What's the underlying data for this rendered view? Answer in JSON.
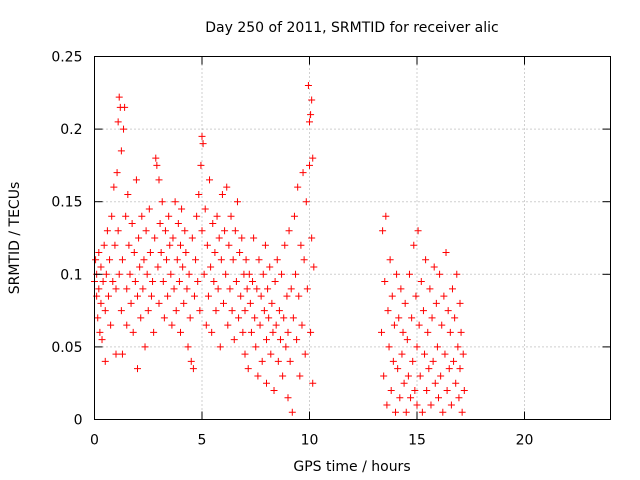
{
  "chart_data": {
    "type": "scatter",
    "title": "Day 250 of 2011, SRMTID for receiver alic",
    "xlabel": "GPS time / hours",
    "ylabel": "SRMTID / TECUs",
    "xlim": [
      0,
      24
    ],
    "ylim": [
      0,
      0.25
    ],
    "xticks": [
      0,
      5,
      10,
      15,
      20
    ],
    "xtick_labels": [
      "0",
      "5",
      "10",
      "15",
      "20"
    ],
    "yticks": [
      0,
      0.05,
      0.1,
      0.15,
      0.2,
      0.25
    ],
    "ytick_labels": [
      "0",
      "0.05",
      "0.1",
      "0.15",
      "0.2",
      "0.25"
    ],
    "grid": true,
    "legend": "none",
    "marker": "plus",
    "color": "#ff0000",
    "series": [
      {
        "points": [
          [
            0.0,
            0.095
          ],
          [
            0.05,
            0.11
          ],
          [
            0.1,
            0.085
          ],
          [
            0.1,
            0.1
          ],
          [
            0.15,
            0.07
          ],
          [
            0.2,
            0.115
          ],
          [
            0.2,
            0.09
          ],
          [
            0.25,
            0.06
          ],
          [
            0.3,
            0.105
          ],
          [
            0.3,
            0.08
          ],
          [
            0.35,
            0.055
          ],
          [
            0.4,
            0.095
          ],
          [
            0.45,
            0.12
          ],
          [
            0.5,
            0.075
          ],
          [
            0.5,
            0.04
          ],
          [
            0.55,
            0.1
          ],
          [
            0.6,
            0.13
          ],
          [
            0.65,
            0.085
          ],
          [
            0.7,
            0.11
          ],
          [
            0.75,
            0.065
          ],
          [
            0.8,
            0.14
          ],
          [
            0.85,
            0.095
          ],
          [
            0.9,
            0.16
          ],
          [
            0.95,
            0.12
          ],
          [
            1.0,
            0.09
          ],
          [
            1.0,
            0.045
          ],
          [
            1.05,
            0.17
          ],
          [
            1.1,
            0.205
          ],
          [
            1.1,
            0.13
          ],
          [
            1.15,
            0.222
          ],
          [
            1.15,
            0.1
          ],
          [
            1.2,
            0.215
          ],
          [
            1.25,
            0.075
          ],
          [
            1.25,
            0.185
          ],
          [
            1.3,
            0.11
          ],
          [
            1.3,
            0.045
          ],
          [
            1.35,
            0.2
          ],
          [
            1.4,
            0.215
          ],
          [
            1.45,
            0.14
          ],
          [
            1.5,
            0.09
          ],
          [
            1.5,
            0.065
          ],
          [
            1.55,
            0.155
          ],
          [
            1.6,
            0.12
          ],
          [
            1.65,
            0.1
          ],
          [
            1.7,
            0.08
          ],
          [
            1.75,
            0.135
          ],
          [
            1.8,
            0.06
          ],
          [
            1.85,
            0.115
          ],
          [
            1.9,
            0.095
          ],
          [
            1.95,
            0.165
          ],
          [
            2.0,
            0.085
          ],
          [
            2.0,
            0.035
          ],
          [
            2.05,
            0.125
          ],
          [
            2.1,
            0.105
          ],
          [
            2.15,
            0.07
          ],
          [
            2.2,
            0.14
          ],
          [
            2.25,
            0.09
          ],
          [
            2.3,
            0.11
          ],
          [
            2.35,
            0.05
          ],
          [
            2.4,
            0.13
          ],
          [
            2.45,
            0.1
          ],
          [
            2.5,
            0.075
          ],
          [
            2.55,
            0.145
          ],
          [
            2.6,
            0.115
          ],
          [
            2.65,
            0.085
          ],
          [
            2.7,
            0.095
          ],
          [
            2.75,
            0.06
          ],
          [
            2.8,
            0.125
          ],
          [
            2.85,
            0.18
          ],
          [
            2.9,
            0.175
          ],
          [
            2.95,
            0.105
          ],
          [
            3.0,
            0.165
          ],
          [
            3.0,
            0.08
          ],
          [
            3.05,
            0.135
          ],
          [
            3.1,
            0.115
          ],
          [
            3.15,
            0.15
          ],
          [
            3.2,
            0.095
          ],
          [
            3.25,
            0.07
          ],
          [
            3.3,
            0.13
          ],
          [
            3.35,
            0.11
          ],
          [
            3.4,
            0.085
          ],
          [
            3.45,
            0.14
          ],
          [
            3.5,
            0.12
          ],
          [
            3.55,
            0.1
          ],
          [
            3.6,
            0.065
          ],
          [
            3.65,
            0.125
          ],
          [
            3.7,
            0.09
          ],
          [
            3.75,
            0.15
          ],
          [
            3.8,
            0.075
          ],
          [
            3.85,
            0.11
          ],
          [
            3.9,
            0.135
          ],
          [
            3.95,
            0.095
          ],
          [
            4.0,
            0.12
          ],
          [
            4.0,
            0.06
          ],
          [
            4.05,
            0.145
          ],
          [
            4.1,
            0.105
          ],
          [
            4.15,
            0.08
          ],
          [
            4.2,
            0.13
          ],
          [
            4.25,
            0.115
          ],
          [
            4.3,
            0.09
          ],
          [
            4.35,
            0.05
          ],
          [
            4.4,
            0.1
          ],
          [
            4.45,
            0.07
          ],
          [
            4.5,
            0.04
          ],
          [
            4.55,
            0.125
          ],
          [
            4.6,
            0.035
          ],
          [
            4.65,
            0.085
          ],
          [
            4.7,
            0.11
          ],
          [
            4.75,
            0.14
          ],
          [
            4.8,
            0.095
          ],
          [
            4.85,
            0.155
          ],
          [
            4.9,
            0.075
          ],
          [
            4.95,
            0.175
          ],
          [
            5.0,
            0.195
          ],
          [
            5.0,
            0.13
          ],
          [
            5.05,
            0.19
          ],
          [
            5.1,
            0.1
          ],
          [
            5.15,
            0.145
          ],
          [
            5.2,
            0.065
          ],
          [
            5.25,
            0.12
          ],
          [
            5.3,
            0.085
          ],
          [
            5.35,
            0.165
          ],
          [
            5.4,
            0.105
          ],
          [
            5.45,
            0.06
          ],
          [
            5.5,
            0.135
          ],
          [
            5.55,
            0.095
          ],
          [
            5.6,
            0.115
          ],
          [
            5.65,
            0.075
          ],
          [
            5.7,
            0.14
          ],
          [
            5.75,
            0.09
          ],
          [
            5.8,
            0.125
          ],
          [
            5.85,
            0.05
          ],
          [
            5.9,
            0.11
          ],
          [
            5.95,
            0.155
          ],
          [
            6.0,
            0.08
          ],
          [
            6.05,
            0.13
          ],
          [
            6.1,
            0.1
          ],
          [
            6.15,
            0.16
          ],
          [
            6.2,
            0.065
          ],
          [
            6.25,
            0.12
          ],
          [
            6.3,
            0.09
          ],
          [
            6.35,
            0.14
          ],
          [
            6.4,
            0.075
          ],
          [
            6.45,
            0.11
          ],
          [
            6.5,
            0.055
          ],
          [
            6.55,
            0.13
          ],
          [
            6.6,
            0.095
          ],
          [
            6.65,
            0.15
          ],
          [
            6.7,
            0.07
          ],
          [
            6.75,
            0.115
          ],
          [
            6.8,
            0.085
          ],
          [
            6.85,
            0.125
          ],
          [
            6.9,
            0.06
          ],
          [
            6.95,
            0.1
          ],
          [
            7.0,
            0.075
          ],
          [
            7.0,
            0.045
          ],
          [
            7.05,
            0.11
          ],
          [
            7.1,
            0.09
          ],
          [
            7.15,
            0.035
          ],
          [
            7.2,
            0.1
          ],
          [
            7.25,
            0.08
          ],
          [
            7.3,
            0.06
          ],
          [
            7.35,
            0.095
          ],
          [
            7.4,
            0.125
          ],
          [
            7.45,
            0.07
          ],
          [
            7.5,
            0.05
          ],
          [
            7.55,
            0.09
          ],
          [
            7.6,
            0.03
          ],
          [
            7.65,
            0.11
          ],
          [
            7.7,
            0.065
          ],
          [
            7.75,
            0.085
          ],
          [
            7.8,
            0.04
          ],
          [
            7.85,
            0.1
          ],
          [
            7.9,
            0.075
          ],
          [
            7.95,
            0.12
          ],
          [
            8.0,
            0.055
          ],
          [
            8.0,
            0.025
          ],
          [
            8.05,
            0.09
          ],
          [
            8.1,
            0.07
          ],
          [
            8.15,
            0.105
          ],
          [
            8.2,
            0.045
          ],
          [
            8.25,
            0.08
          ],
          [
            8.3,
            0.06
          ],
          [
            8.35,
            0.02
          ],
          [
            8.4,
            0.095
          ],
          [
            8.45,
            0.065
          ],
          [
            8.5,
            0.11
          ],
          [
            8.55,
            0.04
          ],
          [
            8.6,
            0.075
          ],
          [
            8.65,
            0.055
          ],
          [
            8.7,
            0.1
          ],
          [
            8.75,
            0.03
          ],
          [
            8.8,
            0.07
          ],
          [
            8.85,
            0.12
          ],
          [
            8.9,
            0.05
          ],
          [
            8.95,
            0.085
          ],
          [
            9.0,
            0.015
          ],
          [
            9.0,
            0.06
          ],
          [
            9.05,
            0.13
          ],
          [
            9.1,
            0.04
          ],
          [
            9.15,
            0.09
          ],
          [
            9.2,
            0.005
          ],
          [
            9.25,
            0.07
          ],
          [
            9.3,
            0.14
          ],
          [
            9.35,
            0.1
          ],
          [
            9.4,
            0.055
          ],
          [
            9.45,
            0.16
          ],
          [
            9.5,
            0.085
          ],
          [
            9.55,
            0.03
          ],
          [
            9.6,
            0.12
          ],
          [
            9.65,
            0.065
          ],
          [
            9.7,
            0.17
          ],
          [
            9.75,
            0.11
          ],
          [
            9.8,
            0.045
          ],
          [
            9.85,
            0.15
          ],
          [
            9.9,
            0.09
          ],
          [
            9.95,
            0.23
          ],
          [
            10.0,
            0.205
          ],
          [
            10.0,
            0.175
          ],
          [
            10.05,
            0.21
          ],
          [
            10.05,
            0.06
          ],
          [
            10.1,
            0.22
          ],
          [
            10.1,
            0.125
          ],
          [
            10.15,
            0.18
          ],
          [
            10.15,
            0.025
          ],
          [
            10.2,
            0.105
          ],
          [
            13.35,
            0.06
          ],
          [
            13.4,
            0.13
          ],
          [
            13.45,
            0.03
          ],
          [
            13.5,
            0.095
          ],
          [
            13.55,
            0.14
          ],
          [
            13.6,
            0.01
          ],
          [
            13.65,
            0.075
          ],
          [
            13.7,
            0.05
          ],
          [
            13.75,
            0.11
          ],
          [
            13.8,
            0.02
          ],
          [
            13.85,
            0.085
          ],
          [
            13.9,
            0.04
          ],
          [
            13.95,
            0.065
          ],
          [
            14.0,
            0.005
          ],
          [
            14.05,
            0.1
          ],
          [
            14.1,
            0.035
          ],
          [
            14.15,
            0.07
          ],
          [
            14.2,
            0.015
          ],
          [
            14.25,
            0.09
          ],
          [
            14.3,
            0.045
          ],
          [
            14.35,
            0.06
          ],
          [
            14.4,
            0.025
          ],
          [
            14.45,
            0.08
          ],
          [
            14.5,
            0.005
          ],
          [
            14.55,
            0.055
          ],
          [
            14.6,
            0.03
          ],
          [
            14.65,
            0.1
          ],
          [
            14.7,
            0.015
          ],
          [
            14.75,
            0.07
          ],
          [
            14.8,
            0.04
          ],
          [
            14.85,
            0.12
          ],
          [
            14.9,
            0.02
          ],
          [
            14.95,
            0.085
          ],
          [
            15.0,
            0.05
          ],
          [
            15.0,
            0.01
          ],
          [
            15.05,
            0.13
          ],
          [
            15.1,
            0.065
          ],
          [
            15.15,
            0.03
          ],
          [
            15.2,
            0.095
          ],
          [
            15.25,
            0.005
          ],
          [
            15.3,
            0.075
          ],
          [
            15.35,
            0.045
          ],
          [
            15.4,
            0.11
          ],
          [
            15.45,
            0.02
          ],
          [
            15.5,
            0.06
          ],
          [
            15.55,
            0.035
          ],
          [
            15.6,
            0.09
          ],
          [
            15.65,
            0.01
          ],
          [
            15.7,
            0.07
          ],
          [
            15.75,
            0.04
          ],
          [
            15.8,
            0.105
          ],
          [
            15.85,
            0.025
          ],
          [
            15.9,
            0.08
          ],
          [
            15.95,
            0.05
          ],
          [
            16.0,
            0.015
          ],
          [
            16.05,
            0.1
          ],
          [
            16.1,
            0.03
          ],
          [
            16.15,
            0.065
          ],
          [
            16.2,
            0.005
          ],
          [
            16.25,
            0.085
          ],
          [
            16.3,
            0.045
          ],
          [
            16.35,
            0.115
          ],
          [
            16.4,
            0.02
          ],
          [
            16.45,
            0.075
          ],
          [
            16.5,
            0.035
          ],
          [
            16.55,
            0.06
          ],
          [
            16.6,
            0.01
          ],
          [
            16.65,
            0.09
          ],
          [
            16.7,
            0.04
          ],
          [
            16.75,
            0.07
          ],
          [
            16.8,
            0.025
          ],
          [
            16.85,
            0.1
          ],
          [
            16.9,
            0.05
          ],
          [
            16.95,
            0.015
          ],
          [
            17.0,
            0.08
          ],
          [
            17.0,
            0.035
          ],
          [
            17.05,
            0.06
          ],
          [
            17.1,
            0.005
          ],
          [
            17.15,
            0.045
          ],
          [
            17.2,
            0.02
          ]
        ]
      }
    ]
  }
}
